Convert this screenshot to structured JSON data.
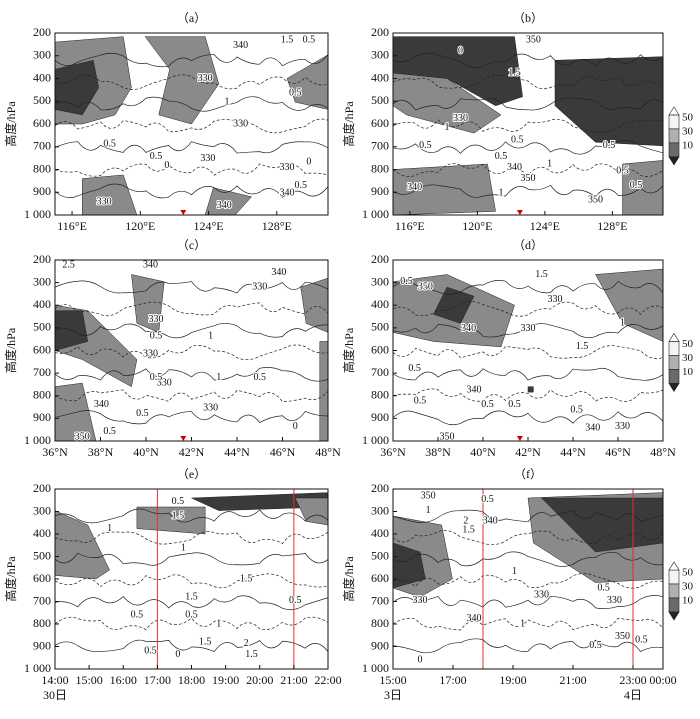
{
  "chart_data": [
    {
      "type": "contour",
      "title": "（a）",
      "ylabel": "高度/hPa",
      "xlim": [
        115,
        131
      ],
      "xticks": [
        {
          "value": 116,
          "label": "116°E"
        },
        {
          "value": 120,
          "label": "120°E"
        },
        {
          "value": 124,
          "label": "124°E"
        },
        {
          "value": 128,
          "label": "128°E"
        }
      ],
      "ylim": [
        1000,
        200
      ],
      "yticks": [
        200,
        300,
        400,
        500,
        600,
        700,
        800,
        900,
        {
          "value": 1000,
          "label": "1 000"
        }
      ],
      "contour_labels": [
        "340",
        "1.5",
        "0.5",
        "330",
        "1",
        "0.5",
        "0.5",
        "0.5",
        "330",
        "0",
        "330",
        "0",
        "0.5",
        "340",
        "330",
        "330",
        "340"
      ]
    },
    {
      "type": "contour",
      "title": "（b）",
      "ylabel": "高度/hPa",
      "xlim": [
        115,
        131
      ],
      "xticks": [
        {
          "value": 116,
          "label": "116°E"
        },
        {
          "value": 120,
          "label": "120°E"
        },
        {
          "value": 124,
          "label": "124°E"
        },
        {
          "value": 128,
          "label": "128°E"
        }
      ],
      "ylim": [
        1000,
        200
      ],
      "yticks": [
        200,
        300,
        400,
        500,
        600,
        700,
        800,
        900,
        {
          "value": 1000,
          "label": "1 000"
        }
      ],
      "contour_labels": [
        "350",
        "0",
        "1.5",
        "330",
        "1",
        "0.5",
        "0.5",
        "1",
        "0.5",
        "0.5",
        "340",
        "0.5",
        "350",
        "340",
        "1",
        "0.5",
        "350"
      ],
      "colorbar": [
        50,
        30,
        10
      ]
    },
    {
      "type": "contour",
      "title": "（c）",
      "ylabel": "高度/hPa",
      "xlim": [
        36,
        48
      ],
      "xticks": [
        {
          "value": 36,
          "label": "36°N"
        },
        {
          "value": 38,
          "label": "38°N"
        },
        {
          "value": 40,
          "label": "40°N"
        },
        {
          "value": 42,
          "label": "42°N"
        },
        {
          "value": 44,
          "label": "44°N"
        },
        {
          "value": 46,
          "label": "46°N"
        },
        {
          "value": 48,
          "label": "48°N"
        }
      ],
      "ylim": [
        1000,
        200
      ],
      "yticks": [
        200,
        300,
        400,
        500,
        600,
        700,
        800,
        900,
        {
          "value": 1000,
          "label": "1 000"
        }
      ],
      "contour_labels": [
        "2.5",
        "340",
        "340",
        "330",
        "330",
        "0.5",
        "1",
        "330",
        "330",
        "0.5",
        "1",
        "0.5",
        "340",
        "0.5",
        "330",
        "0.5",
        "350",
        "0"
      ]
    },
    {
      "type": "contour",
      "title": "（d）",
      "ylabel": "高度/hPa",
      "xlim": [
        36,
        48
      ],
      "xticks": [
        {
          "value": 36,
          "label": "36°N"
        },
        {
          "value": 38,
          "label": "38°N"
        },
        {
          "value": 40,
          "label": "40°N"
        },
        {
          "value": 42,
          "label": "42°N"
        },
        {
          "value": 44,
          "label": "44°N"
        },
        {
          "value": 46,
          "label": "46°N"
        },
        {
          "value": 48,
          "label": "48°N"
        }
      ],
      "ylim": [
        1000,
        200
      ],
      "yticks": [
        200,
        300,
        400,
        500,
        600,
        700,
        800,
        900,
        {
          "value": 1000,
          "label": "1 000"
        }
      ],
      "contour_labels": [
        "0.5",
        "350",
        "1.5",
        "340",
        "330",
        "330",
        "1",
        "1.5",
        "0.5",
        "0.5",
        "340",
        "0.5",
        "0.5",
        "0.5",
        "350",
        "340",
        "330"
      ],
      "colorbar": [
        50,
        30,
        10
      ]
    },
    {
      "type": "contour",
      "title": "（e）",
      "ylabel": "高度/hPa",
      "xlim": [
        14,
        22
      ],
      "xticks": [
        {
          "value": 14,
          "label": "14:00"
        },
        {
          "value": 15,
          "label": "15:00"
        },
        {
          "value": 16,
          "label": "16:00"
        },
        {
          "value": 17,
          "label": "17:00"
        },
        {
          "value": 18,
          "label": "18:00"
        },
        {
          "value": 19,
          "label": "19:00"
        },
        {
          "value": 20,
          "label": "20:00"
        },
        {
          "value": 21,
          "label": "21:00"
        },
        {
          "value": 22,
          "label": "22:00"
        }
      ],
      "date_labels": [
        {
          "value": 14,
          "label": "30日"
        }
      ],
      "marker_lines": [
        17,
        21
      ],
      "ylim": [
        1000,
        200
      ],
      "yticks": [
        200,
        300,
        400,
        500,
        600,
        700,
        800,
        900,
        {
          "value": 1000,
          "label": "1 000"
        }
      ],
      "contour_labels": [
        "0.5",
        "1.5",
        "1",
        "1",
        "1.5",
        "1.5",
        "0.5",
        "0.5",
        "1",
        "0.5",
        "1.5",
        "2",
        "1.5",
        "0.5",
        "0"
      ]
    },
    {
      "type": "contour",
      "title": "（f）",
      "ylabel": "高度/hPa",
      "xlim": [
        15,
        24
      ],
      "xticks": [
        {
          "value": 15,
          "label": "15:00"
        },
        {
          "value": 17,
          "label": "17:00"
        },
        {
          "value": 19,
          "label": "19:00"
        },
        {
          "value": 21,
          "label": "21:00"
        },
        {
          "value": 23,
          "label": "23:00"
        },
        {
          "value": 24,
          "label": "00:00"
        }
      ],
      "date_labels": [
        {
          "value": 15,
          "label": "3日"
        },
        {
          "value": 23,
          "label": "4日"
        }
      ],
      "marker_lines": [
        18,
        23
      ],
      "ylim": [
        1000,
        200
      ],
      "yticks": [
        200,
        300,
        400,
        500,
        600,
        700,
        800,
        900,
        {
          "value": 1000,
          "label": "1 000"
        }
      ],
      "contour_labels": [
        "350",
        "0.5",
        "1",
        "2",
        "1.5",
        "340",
        "1",
        "330",
        "330",
        "0.5",
        "330",
        "340",
        "1",
        "350",
        "0.5",
        "0.5",
        "0"
      ],
      "colorbar": [
        50,
        30,
        10
      ]
    }
  ]
}
